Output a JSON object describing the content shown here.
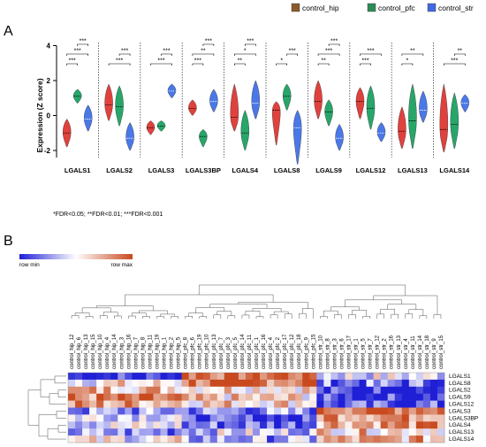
{
  "figure": {
    "panel_a_letter": "A",
    "panel_b_letter": "B",
    "footnote": "*FDR<0.05; **FDR<0.01; ***FDR<0.001"
  },
  "chart_data": [
    {
      "type": "violin",
      "ylabel": "Expression (Z score)",
      "ylim": [
        -3,
        4
      ],
      "yticks": [
        -2,
        0,
        2,
        4
      ],
      "legend": {
        "placement": "top-right",
        "entries": [
          {
            "name": "control_hip",
            "color": "#8b5a2b"
          },
          {
            "name": "control_pfc",
            "color": "#2e8b57"
          },
          {
            "name": "control_str",
            "color": "#4169e1"
          }
        ]
      },
      "groups": [
        "LGALS1",
        "LGALS2",
        "LGALS3",
        "LGALS3BP",
        "LGALS4",
        "LGALS8",
        "LGALS9",
        "LGALS12",
        "LGALS13",
        "LGALS14"
      ],
      "series": [
        {
          "name": "control_hip",
          "fill": "#e0413d",
          "median_line": "#000000",
          "violins": [
            {
              "median": -1.0,
              "min": -1.8,
              "max": -0.2
            },
            {
              "median": 0.6,
              "min": -0.3,
              "max": 1.8
            },
            {
              "median": -0.7,
              "min": -1.1,
              "max": -0.3
            },
            {
              "median": 0.4,
              "min": 0.0,
              "max": 0.9
            },
            {
              "median": -0.1,
              "min": -0.9,
              "max": 1.8
            },
            {
              "median": 0.3,
              "min": -1.7,
              "max": 0.8
            },
            {
              "median": 0.8,
              "min": -0.2,
              "max": 2.0
            },
            {
              "median": 0.8,
              "min": -0.2,
              "max": 1.6
            },
            {
              "median": -0.9,
              "min": -1.9,
              "max": 0.5
            },
            {
              "median": -0.8,
              "min": -2.1,
              "max": 1.8
            }
          ]
        },
        {
          "name": "control_pfc",
          "fill": "#27a66a",
          "median_line": "#000000",
          "violins": [
            {
              "median": 1.1,
              "min": 0.7,
              "max": 1.5
            },
            {
              "median": 0.5,
              "min": -0.6,
              "max": 1.7
            },
            {
              "median": -0.6,
              "min": -0.9,
              "max": -0.3
            },
            {
              "median": -1.2,
              "min": -1.8,
              "max": -0.8
            },
            {
              "median": -1.0,
              "min": -2.0,
              "max": 0.3
            },
            {
              "median": 1.1,
              "min": 0.3,
              "max": 1.8
            },
            {
              "median": 0.2,
              "min": -0.6,
              "max": 0.9
            },
            {
              "median": 0.4,
              "min": -0.8,
              "max": 1.7
            },
            {
              "median": -0.3,
              "min": -1.9,
              "max": 1.8
            },
            {
              "median": -0.5,
              "min": -1.9,
              "max": 1.3
            }
          ]
        },
        {
          "name": "control_str",
          "fill": "#4a78e8",
          "median_line": "#ffffff",
          "violins": [
            {
              "median": -0.2,
              "min": -0.9,
              "max": 0.6
            },
            {
              "median": -1.3,
              "min": -2.0,
              "max": -0.4
            },
            {
              "median": 1.4,
              "min": 1.0,
              "max": 1.8
            },
            {
              "median": 0.8,
              "min": 0.2,
              "max": 1.5
            },
            {
              "median": 0.7,
              "min": -0.2,
              "max": 2.0
            },
            {
              "median": -0.7,
              "min": -2.8,
              "max": 0.3
            },
            {
              "median": -1.3,
              "min": -2.0,
              "max": -0.5
            },
            {
              "median": -1.0,
              "min": -1.5,
              "max": -0.4
            },
            {
              "median": 0.3,
              "min": -0.4,
              "max": 1.4
            },
            {
              "median": 0.7,
              "min": 0.2,
              "max": 1.2
            }
          ]
        }
      ],
      "significance": [
        {
          "group": 0,
          "pairs": [
            {
              "a": 0,
              "b": 1,
              "label": "***"
            },
            {
              "a": 0,
              "b": 2,
              "label": "***"
            },
            {
              "a": 1,
              "b": 2,
              "label": "***"
            }
          ]
        },
        {
          "group": 1,
          "pairs": [
            {
              "a": 0,
              "b": 2,
              "label": "***"
            },
            {
              "a": 1,
              "b": 2,
              "label": "***"
            }
          ]
        },
        {
          "group": 2,
          "pairs": [
            {
              "a": 0,
              "b": 2,
              "label": "***"
            },
            {
              "a": 1,
              "b": 2,
              "label": "***"
            }
          ]
        },
        {
          "group": 3,
          "pairs": [
            {
              "a": 0,
              "b": 1,
              "label": "***"
            },
            {
              "a": 0,
              "b": 2,
              "label": "**"
            },
            {
              "a": 1,
              "b": 2,
              "label": "***"
            }
          ]
        },
        {
          "group": 4,
          "pairs": [
            {
              "a": 0,
              "b": 1,
              "label": "**"
            },
            {
              "a": 0,
              "b": 2,
              "label": "*"
            },
            {
              "a": 1,
              "b": 2,
              "label": "***"
            }
          ]
        },
        {
          "group": 5,
          "pairs": [
            {
              "a": 0,
              "b": 1,
              "label": "*"
            },
            {
              "a": 1,
              "b": 2,
              "label": "***"
            }
          ]
        },
        {
          "group": 6,
          "pairs": [
            {
              "a": 0,
              "b": 1,
              "label": "**"
            },
            {
              "a": 0,
              "b": 2,
              "label": "***"
            },
            {
              "a": 1,
              "b": 2,
              "label": "***"
            }
          ]
        },
        {
          "group": 7,
          "pairs": [
            {
              "a": 0,
              "b": 1,
              "label": "***"
            },
            {
              "a": 0,
              "b": 2,
              "label": "***"
            }
          ]
        },
        {
          "group": 8,
          "pairs": [
            {
              "a": 0,
              "b": 1,
              "label": "*"
            },
            {
              "a": 0,
              "b": 2,
              "label": "**"
            }
          ]
        },
        {
          "group": 9,
          "pairs": [
            {
              "a": 0,
              "b": 2,
              "label": "***"
            },
            {
              "a": 1,
              "b": 2,
              "label": "**"
            }
          ]
        }
      ]
    },
    {
      "type": "heatmap",
      "colorbar": {
        "min_label": "row min",
        "max_label": "row max",
        "low_color": "#1f1fd6",
        "mid_color": "#ffffff",
        "high_color": "#c84a1e"
      },
      "columns": [
        "control_hip_12",
        "control_hip_6",
        "control_hip_13",
        "control_hip_15",
        "control_hip_10",
        "control_hip_4",
        "control_hip_14",
        "control_hip_3",
        "control_hip_16",
        "control_hip_7",
        "control_hip_8",
        "control_hip_11",
        "control_hip_19",
        "control_hip_1",
        "control_hip_2",
        "control_hip_5",
        "control_pfc_8",
        "control_pfc_6",
        "control_pfc_19",
        "control_pfc_10",
        "control_pfc_13",
        "control_pfc_7",
        "control_pfc_3",
        "control_pfc_5",
        "control_pfc_14",
        "control_pfc_11",
        "control_pfc_1",
        "control_pfc_16",
        "control_pfc_4",
        "control_pfc_2",
        "control_pfc_17",
        "control_pfc_12",
        "control_pfc_18",
        "control_pfc_9",
        "control_pfc_15",
        "control_str_10",
        "control_str_8",
        "control_str_3",
        "control_str_6",
        "control_str_17",
        "control_str_1",
        "control_str_5",
        "control_str_7",
        "control_str_12",
        "control_str_2",
        "control_str_16",
        "control_str_13",
        "control_str_4",
        "control_str_11",
        "control_str_14",
        "control_str_18",
        "control_str_9",
        "control_str_15"
      ],
      "rows": [
        "LGALS1",
        "LGALS8",
        "LGALS2",
        "LGALS9",
        "LGALS12",
        "LGALS3",
        "LGALS3BP",
        "LGALS4",
        "LGALS13",
        "LGALS14"
      ]
    }
  ]
}
